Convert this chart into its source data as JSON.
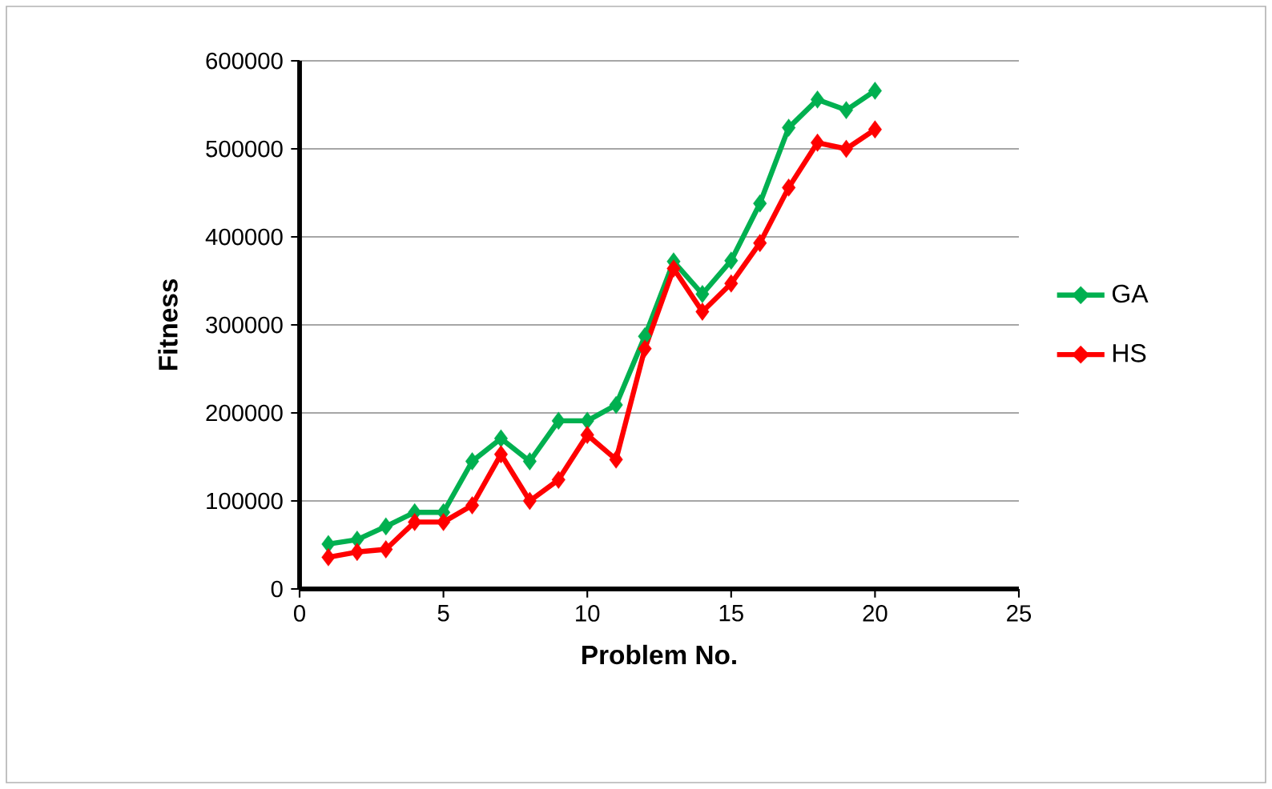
{
  "chart_data": {
    "type": "line",
    "xlabel": "Problem No.",
    "ylabel": "Fitness",
    "x": [
      1,
      2,
      3,
      4,
      5,
      6,
      7,
      8,
      9,
      10,
      11,
      12,
      13,
      14,
      15,
      16,
      17,
      18,
      19,
      20
    ],
    "series": [
      {
        "name": "GA",
        "color": "#00b050",
        "values": [
          51000,
          56000,
          71000,
          87000,
          87000,
          145000,
          171000,
          145000,
          191000,
          191000,
          209000,
          287000,
          372000,
          335000,
          373000,
          438000,
          524000,
          556000,
          544000,
          566000
        ]
      },
      {
        "name": "HS",
        "color": "#ff0000",
        "values": [
          36000,
          42000,
          45000,
          76000,
          76000,
          95000,
          153000,
          100000,
          124000,
          175000,
          147000,
          273000,
          364000,
          315000,
          347000,
          393000,
          456000,
          507000,
          500000,
          522000
        ]
      }
    ],
    "xlim": [
      0,
      25
    ],
    "xticks": [
      0,
      5,
      10,
      15,
      20,
      25
    ],
    "ylim": [
      0,
      600000
    ],
    "yticks": [
      0,
      100000,
      200000,
      300000,
      400000,
      500000,
      600000
    ],
    "grid": "y",
    "legend": "right",
    "marker": "diamond",
    "line_style": "solid"
  }
}
